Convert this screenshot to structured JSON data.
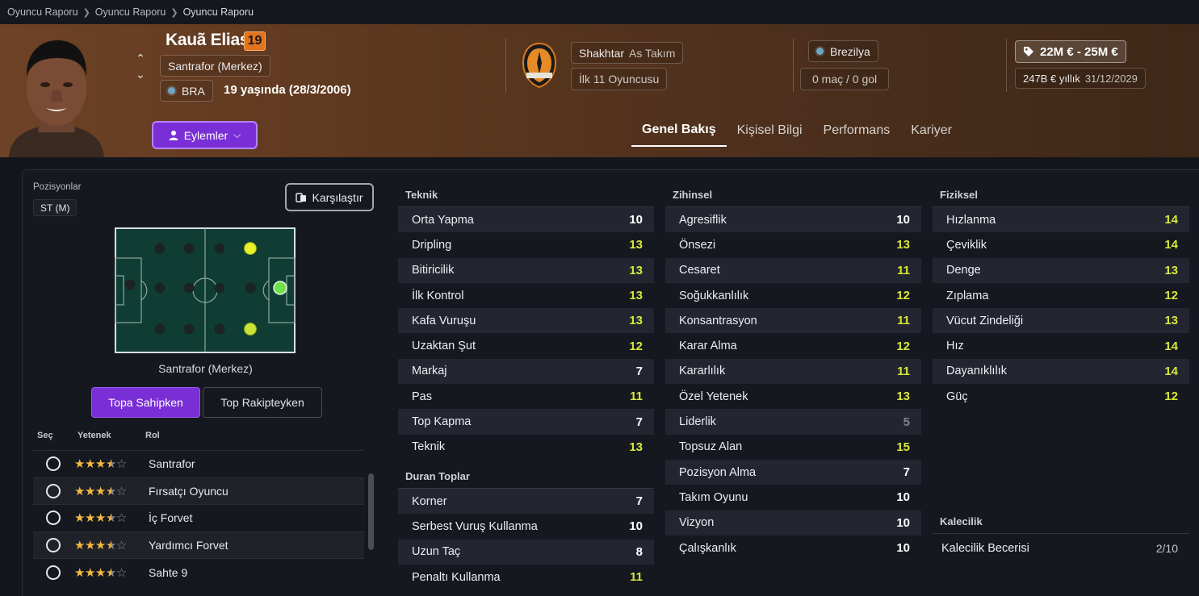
{
  "breadcrumb": [
    "Oyuncu Raporu",
    "Oyuncu Raporu",
    "Oyuncu Raporu"
  ],
  "player": {
    "name": "Kauã Elias",
    "age_badge": "19",
    "position": "Santrafor (Merkez)",
    "nationality_code": "BRA",
    "age_text": "19 yaşında (28/3/2006)"
  },
  "actions_label": "Eylemler",
  "club": {
    "name": "Shakhtar",
    "squad": "As Takım",
    "role": "İlk 11 Oyuncusu"
  },
  "country": {
    "name": "Brezilya",
    "caps": "0 maç / 0 gol"
  },
  "contract": {
    "value_range": "22M € - 25M €",
    "wage": "247B € yıllık",
    "expiry": "31/12/2029"
  },
  "tabs": [
    "Genel Bakış",
    "Kişisel Bilgi",
    "Performans",
    "Kariyer"
  ],
  "left": {
    "positions_label": "Pozisyonlar",
    "position_tag": "ST (M)",
    "compare_label": "Karşılaştır",
    "pitch_caption": "Santrafor (Merkez)",
    "mode_active": "Topa Sahipken",
    "mode_inactive": "Top Rakipteyken",
    "role_headers": {
      "select": "Seç",
      "ability": "Yetenek",
      "role": "Rol"
    },
    "roles": [
      {
        "name": "Santrafor",
        "stars": 3.5
      },
      {
        "name": "Fırsatçı Oyuncu",
        "stars": 3.5
      },
      {
        "name": "İç Forvet",
        "stars": 3.5
      },
      {
        "name": "Yardımcı Forvet",
        "stars": 3.5
      },
      {
        "name": "Sahte 9",
        "stars": 3.5
      }
    ]
  },
  "attributes": {
    "technical": {
      "title": "Teknik",
      "items": [
        {
          "name": "Orta Yapma",
          "value": "10"
        },
        {
          "name": "Dripling",
          "value": "13"
        },
        {
          "name": "Bitiricilik",
          "value": "13"
        },
        {
          "name": "İlk Kontrol",
          "value": "13"
        },
        {
          "name": "Kafa Vuruşu",
          "value": "13"
        },
        {
          "name": "Uzaktan Şut",
          "value": "12"
        },
        {
          "name": "Markaj",
          "value": "7"
        },
        {
          "name": "Pas",
          "value": "11"
        },
        {
          "name": "Top Kapma",
          "value": "7"
        },
        {
          "name": "Teknik",
          "value": "13"
        }
      ]
    },
    "set_pieces": {
      "title": "Duran Toplar",
      "items": [
        {
          "name": "Korner",
          "value": "7"
        },
        {
          "name": "Serbest Vuruş Kullanma",
          "value": "10"
        },
        {
          "name": "Uzun Taç",
          "value": "8"
        },
        {
          "name": "Penaltı Kullanma",
          "value": "11"
        }
      ]
    },
    "mental": {
      "title": "Zihinsel",
      "items": [
        {
          "name": "Agresiflik",
          "value": "10"
        },
        {
          "name": "Önsezi",
          "value": "13"
        },
        {
          "name": "Cesaret",
          "value": "11"
        },
        {
          "name": "Soğukkanlılık",
          "value": "12"
        },
        {
          "name": "Konsantrasyon",
          "value": "11"
        },
        {
          "name": "Karar Alma",
          "value": "12"
        },
        {
          "name": "Kararlılık",
          "value": "11"
        },
        {
          "name": "Özel Yetenek",
          "value": "13"
        },
        {
          "name": "Liderlik",
          "value": "5"
        },
        {
          "name": "Topsuz Alan",
          "value": "15"
        },
        {
          "name": "Pozisyon Alma",
          "value": "7"
        },
        {
          "name": "Takım Oyunu",
          "value": "10"
        },
        {
          "name": "Vizyon",
          "value": "10"
        },
        {
          "name": "Çalışkanlık",
          "value": "10"
        }
      ]
    },
    "physical": {
      "title": "Fiziksel",
      "items": [
        {
          "name": "Hızlanma",
          "value": "14"
        },
        {
          "name": "Çeviklik",
          "value": "14"
        },
        {
          "name": "Denge",
          "value": "13"
        },
        {
          "name": "Zıplama",
          "value": "12"
        },
        {
          "name": "Vücut Zindeliği",
          "value": "13"
        },
        {
          "name": "Hız",
          "value": "14"
        },
        {
          "name": "Dayanıklılık",
          "value": "14"
        },
        {
          "name": "Güç",
          "value": "12"
        }
      ]
    },
    "goalkeeping": {
      "title": "Kalecilik",
      "item_name": "Kalecilik Becerisi",
      "item_value": "2/10"
    }
  },
  "colors": {
    "accent": "#7a2fd6",
    "high_value": "#d8e93a",
    "low_value": "#7e828b",
    "age_badge": "#e2741f"
  }
}
